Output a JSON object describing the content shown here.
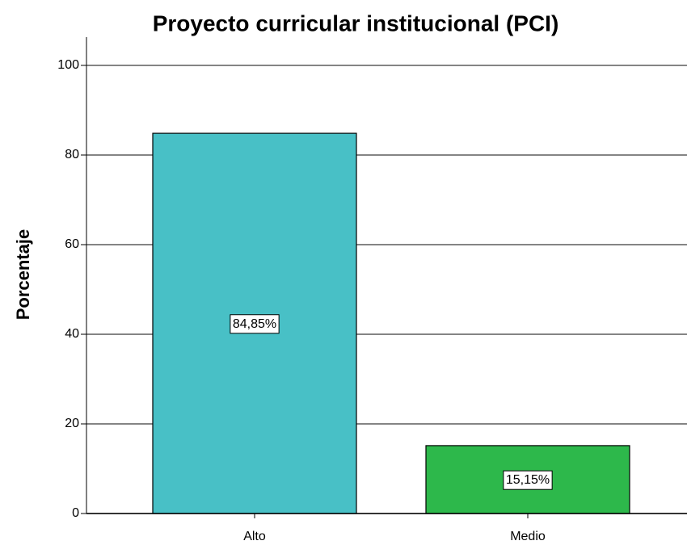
{
  "chart_data": {
    "type": "bar",
    "title": "Proyecto curricular institucional (PCI)",
    "y_label": "Porcentaje",
    "categories": [
      "Alto",
      "Medio"
    ],
    "values": [
      84.85,
      15.15
    ],
    "value_labels": [
      "84,85%",
      "15,15%"
    ],
    "colors": [
      "#48c0c6",
      "#2db84b"
    ],
    "ylim": [
      0,
      100
    ],
    "yticks": [
      0,
      20,
      40,
      60,
      80,
      100
    ],
    "grid": true
  }
}
